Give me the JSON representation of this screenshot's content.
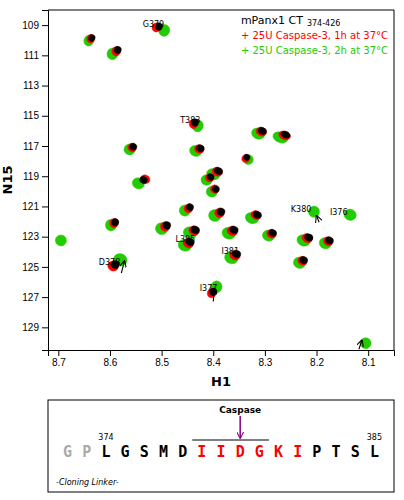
{
  "chart_data": {
    "type": "scatter",
    "marker": "ellipse",
    "xlabel": "H1",
    "ylabel": "N15",
    "xlim": [
      8.72,
      8.05
    ],
    "ylim": [
      130.5,
      108.0
    ],
    "xticks": [
      8.7,
      8.6,
      8.5,
      8.4,
      8.3,
      8.2,
      8.1
    ],
    "yticks": [
      109,
      111,
      113,
      115,
      117,
      119,
      121,
      123,
      125,
      127,
      129
    ],
    "grid": false,
    "legend": "upper right",
    "series": [
      {
        "name": "mPanx1 CT",
        "name_detail": "374-426",
        "color": "black",
        "x": [
          8.505,
          8.635,
          8.585,
          8.435,
          8.305,
          8.26,
          8.555,
          8.425,
          8.335,
          8.39,
          8.535,
          8.405,
          8.395,
          8.445,
          8.385,
          8.315,
          8.59,
          8.49,
          8.435,
          8.36,
          8.285,
          8.215,
          8.175,
          8.445,
          8.355,
          8.225,
          8.59,
          8.4
        ],
        "values": [
          109.1,
          109.85,
          110.65,
          115.45,
          116.0,
          116.25,
          117.05,
          117.15,
          117.75,
          118.65,
          119.25,
          119.05,
          119.85,
          121.05,
          121.35,
          121.55,
          122.05,
          122.25,
          122.55,
          122.55,
          122.75,
          123.05,
          123.25,
          123.35,
          124.15,
          124.55,
          124.85,
          126.65
        ],
        "widths": [
          0.0135,
          0.012,
          0.0135,
          0.0135,
          0.0165,
          0.01875,
          0.0135,
          0.015,
          0.012,
          0.0165,
          0.015,
          0.0135,
          0.0135,
          0.0135,
          0.015,
          0.0165,
          0.0135,
          0.015,
          0.0165,
          0.0165,
          0.015,
          0.0165,
          0.015,
          0.0165,
          0.0165,
          0.015,
          0.0165,
          0.0135
        ],
        "heights": [
          0.4875,
          0.45,
          0.4875,
          0.4875,
          0.45,
          0.435,
          0.45,
          0.45,
          0.4125,
          0.45,
          0.45,
          0.435,
          0.435,
          0.465,
          0.4875,
          0.45,
          0.4875,
          0.4875,
          0.4875,
          0.4875,
          0.45,
          0.465,
          0.465,
          0.4875,
          0.4875,
          0.465,
          0.51,
          0.51
        ]
      },
      {
        "name": "+ 25U Caspase-3, 1h at 37°C",
        "color": "red",
        "x": [
          8.51,
          8.637,
          8.588,
          8.438,
          8.307,
          8.262,
          8.557,
          8.427,
          8.337,
          8.392,
          8.532,
          8.407,
          8.397,
          8.448,
          8.388,
          8.317,
          8.592,
          8.493,
          8.437,
          8.363,
          8.287,
          8.218,
          8.177,
          8.448,
          8.358,
          8.227,
          8.594,
          8.403
        ],
        "values": [
          109.15,
          109.9,
          110.73,
          115.53,
          116.05,
          116.3,
          117.1,
          117.2,
          117.83,
          118.7,
          119.2,
          119.1,
          119.85,
          121.13,
          121.43,
          121.57,
          122.1,
          122.33,
          122.6,
          122.63,
          122.81,
          123.1,
          123.3,
          123.43,
          124.23,
          124.6,
          124.95,
          126.73
        ],
        "widths": [
          0.0171,
          0.0152,
          0.0171,
          0.0171,
          0.0209,
          0.02375,
          0.0171,
          0.019,
          0.0152,
          0.0209,
          0.019,
          0.0171,
          0.0171,
          0.0171,
          0.019,
          0.0209,
          0.0171,
          0.019,
          0.0209,
          0.0209,
          0.019,
          0.0209,
          0.019,
          0.0209,
          0.0209,
          0.019,
          0.0209,
          0.0171
        ],
        "heights": [
          0.6175,
          0.57,
          0.6175,
          0.6175,
          0.57,
          0.551,
          0.57,
          0.57,
          0.5225,
          0.57,
          0.57,
          0.551,
          0.551,
          0.589,
          0.6175,
          0.57,
          0.6175,
          0.6175,
          0.6175,
          0.6175,
          0.57,
          0.589,
          0.589,
          0.6175,
          0.6175,
          0.589,
          0.646,
          0.646
        ]
      },
      {
        "name": "+ 25U Caspase-3, 2h at 37°C",
        "color": "#22cc00",
        "x": [
          8.495,
          8.641,
          8.595,
          8.43,
          8.313,
          8.27,
          8.562,
          8.434,
          8.332,
          8.4,
          8.545,
          8.413,
          8.403,
          8.455,
          8.397,
          8.325,
          8.205,
          8.135,
          8.598,
          8.5,
          8.445,
          8.37,
          8.293,
          8.225,
          8.183,
          8.455,
          8.365,
          8.233,
          8.58,
          8.695,
          8.394,
          8.105
        ],
        "values": [
          109.35,
          110.03,
          110.9,
          115.67,
          116.18,
          116.43,
          117.23,
          117.33,
          117.9,
          118.87,
          119.47,
          119.25,
          120.03,
          121.27,
          121.6,
          121.77,
          121.35,
          121.55,
          122.23,
          122.47,
          122.75,
          122.77,
          122.93,
          123.25,
          123.43,
          123.57,
          124.4,
          124.73,
          124.53,
          123.25,
          126.33,
          130.05
        ],
        "widths": [
          0.0216,
          0.0192,
          0.0216,
          0.0216,
          0.0264,
          0.03,
          0.0216,
          0.024,
          0.0192,
          0.0264,
          0.024,
          0.0216,
          0.0216,
          0.0216,
          0.024,
          0.0264,
          0.0216,
          0.024,
          0.0216,
          0.024,
          0.0264,
          0.0264,
          0.024,
          0.0264,
          0.024,
          0.0264,
          0.0264,
          0.024,
          0.0264,
          0.0216,
          0.0216,
          0.0216
        ],
        "heights": [
          0.78,
          0.72,
          0.78,
          0.78,
          0.72,
          0.696,
          0.72,
          0.72,
          0.66,
          0.72,
          0.72,
          0.696,
          0.696,
          0.744,
          0.78,
          0.72,
          0.744,
          0.744,
          0.78,
          0.78,
          0.78,
          0.78,
          0.72,
          0.744,
          0.744,
          0.78,
          0.78,
          0.744,
          0.816,
          0.72,
          0.816,
          0.72
        ]
      }
    ],
    "annotations": [
      {
        "text": "G379",
        "x": 8.495,
        "y": 108.75
      },
      {
        "text": "T383",
        "x": 8.425,
        "y": 115.1
      },
      {
        "text": "K380",
        "x": 8.21,
        "y": 121.0
      },
      {
        "text": "I376",
        "x": 8.14,
        "y": 121.2
      },
      {
        "text": "L385",
        "x": 8.435,
        "y": 123.0
      },
      {
        "text": "I381",
        "x": 8.35,
        "y": 123.8
      },
      {
        "text": "D378",
        "x": 8.58,
        "y": 124.5
      },
      {
        "text": "I377",
        "x": 8.392,
        "y": 126.25
      }
    ],
    "arrows": [
      {
        "x1": 8.578,
        "y1": 125.42,
        "x2": 8.572,
        "y2": 124.62
      },
      {
        "x1": 8.4,
        "y1": 127.28,
        "x2": 8.398,
        "y2": 126.42
      },
      {
        "x1": 8.195,
        "y1": 122.05,
        "x2": 8.2,
        "y2": 121.62
      },
      {
        "x1": 8.118,
        "y1": 130.45,
        "x2": 8.112,
        "y2": 129.85
      }
    ],
    "inset": {
      "sequence": [
        {
          "text": "G",
          "color": "#aaaaaa"
        },
        {
          "text": "P",
          "color": "#aaaaaa"
        },
        {
          "text": "L",
          "color": "black"
        },
        {
          "text": "G",
          "color": "black"
        },
        {
          "text": "S",
          "color": "black"
        },
        {
          "text": "M",
          "color": "black"
        },
        {
          "text": "D",
          "color": "black"
        },
        {
          "text": "I",
          "color": "red"
        },
        {
          "text": "I",
          "color": "red"
        },
        {
          "text": "D",
          "color": "red"
        },
        {
          "text": "G",
          "color": "red"
        },
        {
          "text": "K",
          "color": "red"
        },
        {
          "text": "I",
          "color": "red"
        },
        {
          "text": "P",
          "color": "black"
        },
        {
          "text": "T",
          "color": "black"
        },
        {
          "text": "S",
          "color": "black"
        },
        {
          "text": "L",
          "color": "black"
        }
      ],
      "numbers": [
        {
          "value": 374,
          "residue": 2
        },
        {
          "value": 385,
          "residue": 16
        }
      ],
      "cleavage": {
        "label": "Caspase",
        "residue": 9,
        "site": [
          7,
          10
        ],
        "color": "purple"
      },
      "caption": "-Cloning Linker-"
    }
  }
}
